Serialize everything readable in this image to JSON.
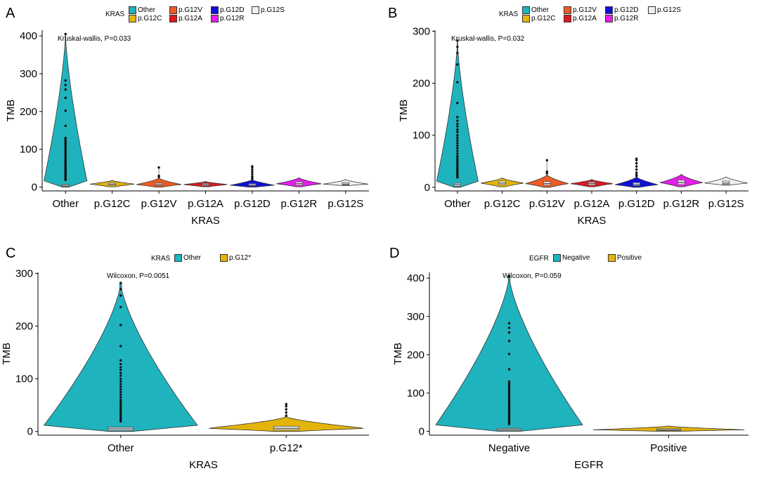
{
  "colors": {
    "Other": "#1fb3bd",
    "p.G12C": "#e4b40c",
    "p.G12V": "#ef5b24",
    "p.G12A": "#dd1a1e",
    "p.G12D": "#1010d8",
    "p.G12R": "#e51ee9",
    "p.G12S": "#f0f0f0",
    "p.G12*": "#e4b40c",
    "Negative": "#1fb3bd",
    "Positive": "#e4b40c"
  },
  "panels": [
    {
      "letter": "A",
      "legend": {
        "title": "KRAS",
        "items": [
          {
            "label": "Other",
            "color": "#1fb3bd"
          },
          {
            "label": "p.G12C",
            "color": "#e4b40c"
          },
          {
            "label": "p.G12V",
            "color": "#ef5b24"
          },
          {
            "label": "p.G12A",
            "color": "#dd1a1e"
          },
          {
            "label": "p.G12D",
            "color": "#1010d8"
          },
          {
            "label": "p.G12R",
            "color": "#e51ee9"
          },
          {
            "label": "p.G12S",
            "color": "#f0f0f0"
          }
        ]
      },
      "stat_label": "Kruskal-wallis, P=0.033"
    },
    {
      "letter": "B",
      "legend": {
        "title": "KRAS",
        "items": [
          {
            "label": "Other",
            "color": "#1fb3bd"
          },
          {
            "label": "p.G12C",
            "color": "#e4b40c"
          },
          {
            "label": "p.G12V",
            "color": "#ef5b24"
          },
          {
            "label": "p.G12A",
            "color": "#dd1a1e"
          },
          {
            "label": "p.G12D",
            "color": "#1010d8"
          },
          {
            "label": "p.G12R",
            "color": "#e51ee9"
          },
          {
            "label": "p.G12S",
            "color": "#f0f0f0"
          }
        ]
      },
      "stat_label": "Kruskal-wallis, P=0.032"
    },
    {
      "letter": "C",
      "legend": {
        "title": "KRAS",
        "items": [
          {
            "label": "Other",
            "color": "#1fb3bd"
          },
          {
            "label": "p.G12*",
            "color": "#e4b40c"
          }
        ]
      },
      "stat_label": "Wilcoxon, P=0.0051"
    },
    {
      "letter": "D",
      "legend": {
        "title": "EGFR",
        "items": [
          {
            "label": "Negative",
            "color": "#1fb3bd"
          },
          {
            "label": "Positive",
            "color": "#e4b40c"
          }
        ]
      },
      "stat_label": "Wilcoxon, P=0.059"
    }
  ],
  "chart_data": [
    {
      "type": "violin",
      "panel": "A",
      "xlabel": "KRAS",
      "ylabel": "TMB",
      "ylim": [
        -10,
        415
      ],
      "yticks": [
        0,
        100,
        200,
        300,
        400
      ],
      "categories": [
        "Other",
        "p.G12C",
        "p.G12V",
        "p.G12A",
        "p.G12D",
        "p.G12R",
        "p.G12S"
      ],
      "groups": [
        {
          "category": "Other",
          "min": 0,
          "q1": 2,
          "median": 5,
          "q3": 8,
          "max": 405,
          "outliers": [
            405,
            282,
            270,
            258,
            236,
            202,
            162,
            130,
            125,
            120,
            116,
            112,
            108,
            103,
            98,
            94,
            90,
            85,
            80,
            76,
            72,
            68,
            64,
            60,
            56,
            52,
            48,
            45,
            42,
            38,
            35,
            32,
            29,
            26,
            23,
            21,
            19
          ]
        },
        {
          "category": "p.G12C",
          "min": 1,
          "q1": 5,
          "median": 8,
          "q3": 12,
          "max": 18,
          "outliers": []
        },
        {
          "category": "p.G12V",
          "min": 0,
          "q1": 4,
          "median": 7,
          "q3": 11,
          "max": 24,
          "outliers": [
            52,
            30,
            27
          ]
        },
        {
          "category": "p.G12A",
          "min": 1,
          "q1": 4,
          "median": 7,
          "q3": 10,
          "max": 15,
          "outliers": []
        },
        {
          "category": "p.G12D",
          "min": 0,
          "q1": 3,
          "median": 5,
          "q3": 9,
          "max": 20,
          "outliers": [
            55,
            52,
            46,
            40,
            34,
            28,
            24,
            22
          ]
        },
        {
          "category": "p.G12R",
          "min": 1,
          "q1": 5,
          "median": 9,
          "q3": 14,
          "max": 25,
          "outliers": []
        },
        {
          "category": "p.G12S",
          "min": 4,
          "q1": 6,
          "median": 8,
          "q3": 12,
          "max": 20,
          "outliers": []
        }
      ]
    },
    {
      "type": "violin",
      "panel": "B",
      "xlabel": "KRAS",
      "ylabel": "TMB",
      "ylim": [
        -7,
        302
      ],
      "yticks": [
        0,
        100,
        200,
        300
      ],
      "categories": [
        "Other",
        "p.G12C",
        "p.G12V",
        "p.G12A",
        "p.G12D",
        "p.G12R",
        "p.G12S"
      ],
      "groups": [
        {
          "category": "Other",
          "min": 0,
          "q1": 2,
          "median": 5,
          "q3": 8,
          "max": 282,
          "outliers": [
            282,
            270,
            258,
            236,
            202,
            162,
            135,
            128,
            122,
            117,
            111,
            106,
            100,
            95,
            90,
            85,
            80,
            75,
            70,
            65,
            60,
            56,
            52,
            48,
            44,
            40,
            36,
            33,
            30,
            27,
            24,
            21,
            19
          ]
        },
        {
          "category": "p.G12C",
          "min": 1,
          "q1": 5,
          "median": 8,
          "q3": 12,
          "max": 18,
          "outliers": []
        },
        {
          "category": "p.G12V",
          "min": 0,
          "q1": 4,
          "median": 7,
          "q3": 11,
          "max": 24,
          "outliers": [
            52,
            30,
            27
          ]
        },
        {
          "category": "p.G12A",
          "min": 1,
          "q1": 4,
          "median": 7,
          "q3": 10,
          "max": 15,
          "outliers": []
        },
        {
          "category": "p.G12D",
          "min": 0,
          "q1": 3,
          "median": 5,
          "q3": 9,
          "max": 20,
          "outliers": [
            55,
            52,
            46,
            40,
            34,
            28,
            24,
            22
          ]
        },
        {
          "category": "p.G12R",
          "min": 1,
          "q1": 5,
          "median": 9,
          "q3": 14,
          "max": 25,
          "outliers": []
        },
        {
          "category": "p.G12S",
          "min": 4,
          "q1": 6,
          "median": 8,
          "q3": 12,
          "max": 20,
          "outliers": []
        }
      ]
    },
    {
      "type": "violin",
      "panel": "C",
      "xlabel": "KRAS",
      "ylabel": "TMB",
      "ylim": [
        -7,
        302
      ],
      "yticks": [
        0,
        100,
        200,
        300
      ],
      "categories": [
        "Other",
        "p.G12*"
      ],
      "groups": [
        {
          "category": "Other",
          "min": 0,
          "q1": 2,
          "median": 5,
          "q3": 8,
          "max": 282,
          "outliers": [
            282,
            270,
            258,
            236,
            202,
            162,
            135,
            128,
            122,
            117,
            111,
            106,
            100,
            95,
            90,
            85,
            80,
            75,
            70,
            65,
            60,
            56,
            52,
            48,
            44,
            40,
            36,
            33,
            30,
            27,
            24,
            21,
            19
          ]
        },
        {
          "category": "p.G12*",
          "min": 0,
          "q1": 3,
          "median": 6,
          "q3": 10,
          "max": 28,
          "outliers": [
            52,
            48,
            42,
            36,
            30
          ]
        }
      ]
    },
    {
      "type": "violin",
      "panel": "D",
      "xlabel": "EGFR",
      "ylabel": "TMB",
      "ylim": [
        -10,
        415
      ],
      "yticks": [
        0,
        100,
        200,
        300,
        400
      ],
      "categories": [
        "Negative",
        "Positive"
      ],
      "groups": [
        {
          "category": "Negative",
          "min": 0,
          "q1": 2,
          "median": 5,
          "q3": 8,
          "max": 405,
          "outliers": [
            405,
            282,
            270,
            258,
            236,
            202,
            162,
            130,
            125,
            120,
            116,
            112,
            108,
            103,
            98,
            94,
            90,
            85,
            80,
            76,
            72,
            68,
            64,
            60,
            56,
            52,
            48,
            45,
            42,
            38,
            35,
            32,
            29,
            26,
            23,
            21,
            19
          ]
        },
        {
          "category": "Positive",
          "min": 0,
          "q1": 2,
          "median": 4,
          "q3": 7,
          "max": 14,
          "outliers": []
        }
      ]
    }
  ]
}
